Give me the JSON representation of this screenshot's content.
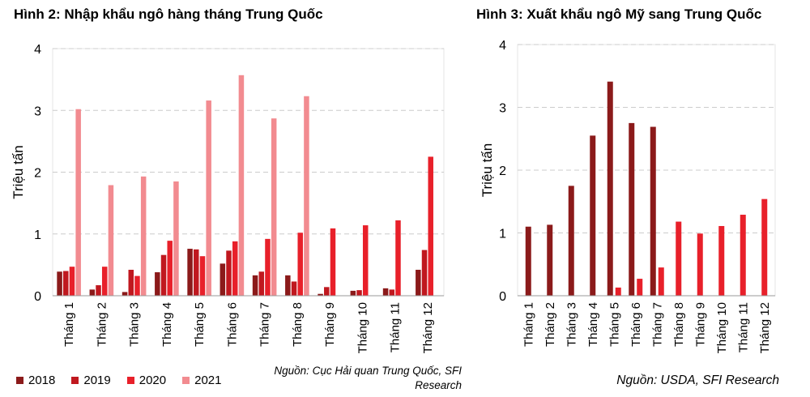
{
  "charts": [
    {
      "title": "Hình 2: Nhập khẩu ngô hàng tháng Trung Quốc",
      "source": "Nguồn: Cục Hải quan Trung Quốc, SFI Research",
      "chart_data": {
        "type": "bar",
        "title": "Hình 2: Nhập khẩu ngô hàng tháng Trung Quốc",
        "ylabel": "Triệu tấn",
        "xlabel": "",
        "ylim": [
          0,
          4
        ],
        "yticks": [
          "0",
          "1",
          "2",
          "3",
          "4"
        ],
        "grid": true,
        "legend_position": "bottom-left",
        "categories": [
          "Tháng 1",
          "Tháng 2",
          "Tháng 3",
          "Tháng 4",
          "Tháng 5",
          "Tháng 6",
          "Tháng 7",
          "Tháng 8",
          "Tháng 9",
          "Tháng 10",
          "Tháng 11",
          "Tháng 12"
        ],
        "series": [
          {
            "name": "2018",
            "color": "#8b1a1a",
            "values": [
              0.39,
              0.1,
              0.06,
              0.38,
              0.76,
              0.52,
              0.33,
              0.33,
              0.03,
              0.08,
              0.12,
              0.42
            ]
          },
          {
            "name": "2019",
            "color": "#c0181f",
            "values": [
              0.4,
              0.17,
              0.42,
              0.66,
              0.75,
              0.73,
              0.39,
              0.23,
              0.14,
              0.09,
              0.1,
              0.74
            ]
          },
          {
            "name": "2020",
            "color": "#e8202a",
            "values": [
              0.47,
              0.47,
              0.32,
              0.89,
              0.64,
              0.88,
              0.92,
              1.02,
              1.09,
              1.14,
              1.22,
              2.25
            ]
          },
          {
            "name": "2021",
            "color": "#f28b90",
            "values": [
              3.02,
              1.79,
              1.93,
              1.85,
              3.16,
              3.57,
              2.87,
              3.23,
              null,
              null,
              null,
              null
            ]
          }
        ]
      },
      "legend": [
        {
          "label": "2018",
          "color": "#8b1a1a"
        },
        {
          "label": "2019",
          "color": "#c0181f"
        },
        {
          "label": "2020",
          "color": "#e8202a"
        },
        {
          "label": "2021",
          "color": "#f28b90"
        }
      ]
    },
    {
      "title": "Hình 3: Xuất khẩu ngô Mỹ sang Trung Quốc",
      "source": "Nguồn: USDA, SFI Research",
      "chart_data": {
        "type": "bar",
        "title": "Hình 3: Xuất khẩu ngô Mỹ sang Trung Quốc",
        "ylabel": "Triệu tấn",
        "xlabel": "",
        "ylim": [
          0,
          4
        ],
        "yticks": [
          "0",
          "1",
          "2",
          "3",
          "4"
        ],
        "grid": true,
        "categories": [
          "Tháng 1",
          "Tháng 2",
          "Tháng 3",
          "Tháng 4",
          "Tháng 5",
          "Tháng 6",
          "Tháng 7",
          "Tháng 8",
          "Tháng 9",
          "Tháng 10",
          "Tháng 11",
          "Tháng 12"
        ],
        "series": [
          {
            "color": "#8b1a1a",
            "values": [
              1.1,
              1.13,
              1.75,
              2.55,
              3.41,
              2.75,
              2.69,
              null,
              null,
              null,
              null,
              null
            ]
          },
          {
            "color": "#e8202a",
            "values": [
              null,
              null,
              null,
              null,
              0.13,
              0.27,
              0.45,
              1.18,
              0.99,
              1.11,
              1.29,
              1.54
            ]
          }
        ]
      }
    }
  ]
}
